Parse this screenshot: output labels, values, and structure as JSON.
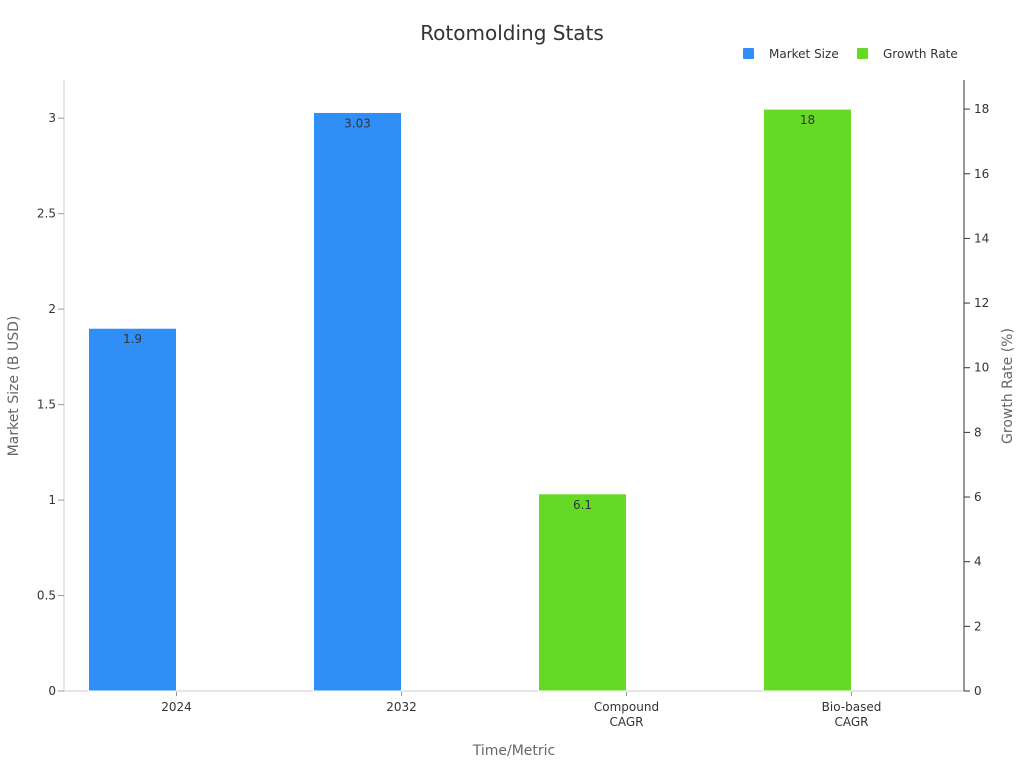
{
  "chart_data": {
    "type": "bar",
    "title": "Rotomolding Stats",
    "xlabel": "Time/Metric",
    "ylabel": "Market Size (B USD)",
    "y2label": "Growth Rate (%)",
    "categories": [
      [
        "2024"
      ],
      [
        "2032"
      ],
      [
        "Compound",
        "CAGR"
      ],
      [
        "Bio-based",
        "CAGR"
      ]
    ],
    "ylim": [
      0,
      3.2
    ],
    "y2lim": [
      0,
      18.9
    ],
    "yticks": [
      0,
      0.5,
      1,
      1.5,
      2,
      2.5,
      3
    ],
    "yticklabels": [
      "0",
      "0.5",
      "1",
      "1.5",
      "2",
      "2.5",
      "3"
    ],
    "y2ticks": [
      0,
      2,
      4,
      6,
      8,
      10,
      12,
      14,
      16,
      18
    ],
    "y2ticklabels": [
      "0",
      "2",
      "4",
      "6",
      "8",
      "10",
      "12",
      "14",
      "16",
      "18"
    ],
    "legend_position": "top-right",
    "grid": false,
    "series": [
      {
        "name": "Market Size",
        "axis": "left",
        "color": "#2f8ff7",
        "values": [
          1.9,
          3.03,
          null,
          null
        ],
        "labels": [
          "1.9",
          "3.03",
          "",
          ""
        ]
      },
      {
        "name": "Growth Rate",
        "axis": "right",
        "color": "#66d926",
        "values": [
          null,
          null,
          6.1,
          18
        ],
        "labels": [
          "",
          "",
          "6.1",
          "18"
        ]
      }
    ]
  }
}
